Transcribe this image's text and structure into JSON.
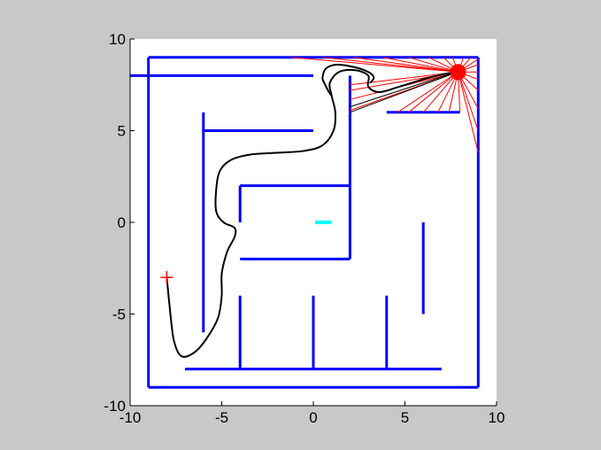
{
  "chart_data": {
    "type": "line",
    "xlim": [
      -10,
      10
    ],
    "ylim": [
      -10,
      10
    ],
    "x_ticks": [
      {
        "value": -10,
        "label": "-10"
      },
      {
        "value": -5,
        "label": "-5"
      },
      {
        "value": 0,
        "label": "0"
      },
      {
        "value": 5,
        "label": "5"
      },
      {
        "value": 10,
        "label": "10"
      }
    ],
    "y_ticks": [
      {
        "value": 10,
        "label": "10"
      },
      {
        "value": 5,
        "label": "5"
      },
      {
        "value": 0,
        "label": "0"
      },
      {
        "value": -5,
        "label": "-5"
      },
      {
        "value": -10,
        "label": "-10"
      }
    ],
    "grid": false,
    "colors": {
      "walls": "#0000ff",
      "path": "#000000",
      "rays": "#ff0000",
      "goal": "#00ffff",
      "start": "#ff0000",
      "background": "#c8c8c8",
      "axes_face": "#ffffff"
    },
    "walls": [
      [
        [
          -9,
          9
        ],
        [
          9,
          9
        ]
      ],
      [
        [
          9,
          9
        ],
        [
          9,
          -9
        ]
      ],
      [
        [
          9,
          -9
        ],
        [
          -9,
          -9
        ]
      ],
      [
        [
          -9,
          -9
        ],
        [
          -9,
          9
        ]
      ],
      [
        [
          -10,
          8
        ],
        [
          0,
          8
        ]
      ],
      [
        [
          -6,
          6
        ],
        [
          -6,
          -6
        ]
      ],
      [
        [
          -6,
          5
        ],
        [
          0,
          5
        ]
      ],
      [
        [
          2,
          8
        ],
        [
          2,
          -2
        ]
      ],
      [
        [
          -4,
          2
        ],
        [
          2,
          2
        ]
      ],
      [
        [
          -4,
          2
        ],
        [
          -4,
          0
        ]
      ],
      [
        [
          -4,
          -2
        ],
        [
          2,
          -2
        ]
      ],
      [
        [
          4,
          6
        ],
        [
          8,
          6
        ]
      ],
      [
        [
          6,
          0
        ],
        [
          6,
          -5
        ]
      ],
      [
        [
          -7,
          -8
        ],
        [
          7,
          -8
        ]
      ],
      [
        [
          -4,
          -4
        ],
        [
          -4,
          -8
        ]
      ],
      [
        [
          0,
          -4
        ],
        [
          0,
          -8
        ]
      ],
      [
        [
          4,
          -4
        ],
        [
          4,
          -8
        ]
      ]
    ],
    "goal": {
      "x": [
        0.1,
        1.0
      ],
      "y": [
        -0.1,
        0.1
      ]
    },
    "start": {
      "x": -8,
      "y": -3
    },
    "robot": {
      "x": 7.9,
      "y": 8.2
    },
    "rays_ends": [
      [
        -1.2,
        9
      ],
      [
        0.5,
        9
      ],
      [
        2.2,
        9
      ],
      [
        3.8,
        9
      ],
      [
        5.2,
        9
      ],
      [
        6.3,
        9
      ],
      [
        7.1,
        9
      ],
      [
        7.6,
        9
      ],
      [
        8.2,
        9
      ],
      [
        8.6,
        9
      ],
      [
        9,
        8.9
      ],
      [
        9,
        8.6
      ],
      [
        9,
        8.2
      ],
      [
        9,
        7.8
      ],
      [
        9,
        7.2
      ],
      [
        9,
        6.2
      ],
      [
        9,
        5.0
      ],
      [
        9,
        3.8
      ],
      [
        8.0,
        6
      ],
      [
        7.4,
        6
      ],
      [
        6.8,
        6
      ],
      [
        6.0,
        6
      ],
      [
        5.2,
        6
      ],
      [
        4.6,
        6
      ],
      [
        2,
        6.1
      ],
      [
        2,
        6.7
      ],
      [
        2,
        7.2
      ],
      [
        2,
        7.5
      ]
    ],
    "sensor_beams_black": [
      [
        [
          2,
          6
        ],
        [
          7.6,
          8.1
        ]
      ],
      [
        [
          2,
          6.3
        ],
        [
          7.5,
          8.1
        ]
      ]
    ],
    "path": [
      [
        -8,
        -3
      ],
      [
        -7.8,
        -5
      ],
      [
        -7.6,
        -6.5
      ],
      [
        -7.2,
        -7.3
      ],
      [
        -6.5,
        -7.1
      ],
      [
        -5.8,
        -6.3
      ],
      [
        -5.2,
        -5.2
      ],
      [
        -5.0,
        -4.0
      ],
      [
        -5.0,
        -2.8
      ],
      [
        -4.7,
        -1.6
      ],
      [
        -4.3,
        -0.8
      ],
      [
        -4.3,
        -0.3
      ],
      [
        -4.9,
        0.0
      ],
      [
        -5.3,
        0.6
      ],
      [
        -5.3,
        1.8
      ],
      [
        -5.1,
        2.8
      ],
      [
        -4.5,
        3.4
      ],
      [
        -3.4,
        3.7
      ],
      [
        -1.8,
        3.8
      ],
      [
        -0.5,
        3.9
      ],
      [
        0.5,
        4.2
      ],
      [
        1.1,
        5.0
      ],
      [
        1.2,
        6.0
      ],
      [
        1.0,
        6.9
      ],
      [
        0.9,
        7.6
      ],
      [
        1.4,
        8.2
      ],
      [
        2.3,
        8.3
      ],
      [
        3.0,
        8.0
      ],
      [
        3.0,
        7.4
      ],
      [
        3.6,
        7.1
      ],
      [
        4.7,
        7.4
      ],
      [
        6.0,
        7.8
      ],
      [
        7.2,
        8.1
      ],
      [
        7.9,
        8.2
      ]
    ],
    "path_loop": [
      [
        1.0,
        6.9
      ],
      [
        0.8,
        7.2
      ],
      [
        0.6,
        7.6
      ],
      [
        0.5,
        7.9
      ],
      [
        0.7,
        8.4
      ],
      [
        1.3,
        8.6
      ],
      [
        2.3,
        8.45
      ],
      [
        3.0,
        8.2
      ],
      [
        3.3,
        7.9
      ],
      [
        3.1,
        7.6
      ]
    ]
  }
}
